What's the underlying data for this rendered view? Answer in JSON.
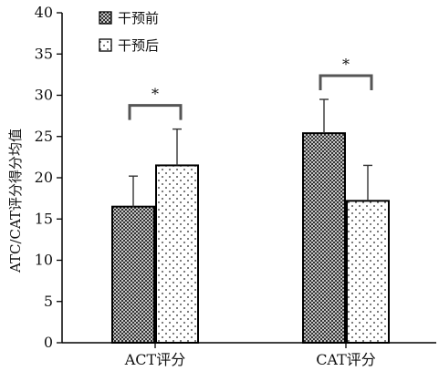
{
  "chart_data": {
    "type": "bar",
    "categories": [
      "ACT评分",
      "CAT评分"
    ],
    "series": [
      {
        "name": "干预前",
        "values": [
          16.5,
          25.4
        ],
        "errors": [
          3.7,
          4.1
        ],
        "pattern": "crosshatch"
      },
      {
        "name": "干预后",
        "values": [
          21.5,
          17.2
        ],
        "errors": [
          4.4,
          4.3
        ],
        "pattern": "dots"
      }
    ],
    "ylabel": "ATC/CAT评分得分均值",
    "xlabel": "",
    "ylim": [
      0,
      40
    ],
    "yticks": [
      0,
      5,
      10,
      15,
      20,
      25,
      30,
      35,
      40
    ],
    "grid": false,
    "legend": "top-left",
    "significance": [
      {
        "category": "ACT评分",
        "label": "*"
      },
      {
        "category": "CAT评分",
        "label": "*"
      }
    ],
    "colors": {
      "bar_edge": "#000000",
      "axis": "#000000"
    }
  }
}
